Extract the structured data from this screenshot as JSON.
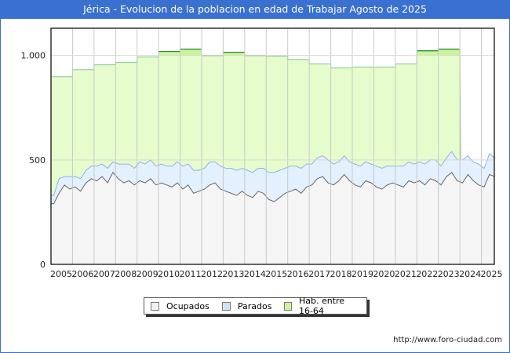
{
  "title": "Jérica - Evolucion de la poblacion en edad de Trabajar Agosto de 2025",
  "footer": "http://www.foro-ciudad.com",
  "chart_data": {
    "type": "area",
    "title": "Jérica - Evolucion de la poblacion en edad de Trabajar Agosto de 2025",
    "xlim": [
      2005,
      2025.6
    ],
    "ylim": [
      0,
      1130
    ],
    "yticks": [
      0,
      500,
      1000
    ],
    "ytick_labels": [
      "0",
      "500",
      "1.000"
    ],
    "xticks": [
      2005,
      2006,
      2007,
      2008,
      2009,
      2010,
      2011,
      2012,
      2013,
      2014,
      2015,
      2016,
      2017,
      2018,
      2019,
      2020,
      2021,
      2022,
      2023,
      2024,
      2025
    ],
    "grid": true,
    "legend_position": "bottom",
    "legend": [
      "Ocupados",
      "Parados",
      "Hab. entre 16-64"
    ],
    "colors": {
      "ocupados_fill": "#f5f5f5",
      "ocupados_line": "#666666",
      "parados_fill": "#e3f0fd",
      "parados_line": "#8fb3e8",
      "hab_fill": "#e6fccc",
      "hab_fill_top": "#ccf59a",
      "hab_line": "#80c890",
      "hab_line_top": "#2a8a40"
    },
    "hab_years": [
      2005,
      2006,
      2007,
      2008,
      2009,
      2010,
      2011,
      2012,
      2013,
      2014,
      2015,
      2016,
      2017,
      2018,
      2019,
      2020,
      2021,
      2022,
      2023
    ],
    "hab_values": [
      898,
      932,
      955,
      966,
      992,
      1019,
      1030,
      1000,
      1015,
      1000,
      996,
      981,
      959,
      940,
      944,
      944,
      959,
      1022,
      1030
    ],
    "quarterly_start": 2005,
    "ocupados": [
      290,
      340,
      380,
      360,
      370,
      350,
      390,
      410,
      400,
      420,
      390,
      440,
      410,
      390,
      400,
      380,
      400,
      390,
      410,
      380,
      390,
      380,
      370,
      390,
      360,
      380,
      340,
      350,
      360,
      380,
      390,
      360,
      350,
      340,
      330,
      350,
      330,
      320,
      350,
      340,
      310,
      300,
      320,
      340,
      350,
      360,
      340,
      370,
      380,
      410,
      420,
      390,
      380,
      400,
      430,
      400,
      380,
      370,
      400,
      390,
      370,
      360,
      380,
      390,
      380,
      370,
      400,
      390,
      400,
      380,
      410,
      400,
      380,
      420,
      440,
      400,
      390,
      430,
      400,
      380,
      370,
      430,
      420
    ],
    "parados": [
      40,
      70,
      40,
      60,
      50,
      60,
      60,
      60,
      70,
      60,
      70,
      50,
      70,
      90,
      80,
      80,
      90,
      90,
      90,
      90,
      90,
      90,
      100,
      100,
      110,
      100,
      110,
      100,
      100,
      110,
      100,
      110,
      110,
      120,
      120,
      110,
      120,
      120,
      110,
      120,
      130,
      140,
      130,
      120,
      120,
      110,
      120,
      110,
      100,
      100,
      100,
      110,
      100,
      90,
      90,
      90,
      100,
      100,
      90,
      90,
      100,
      100,
      90,
      80,
      90,
      100,
      90,
      90,
      90,
      100,
      90,
      100,
      90,
      90,
      100,
      100,
      110,
      90,
      90,
      100,
      90,
      100,
      90
    ]
  }
}
